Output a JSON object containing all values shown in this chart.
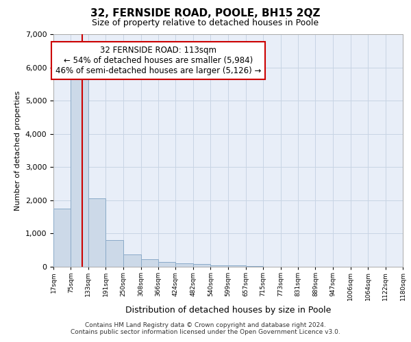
{
  "title_line1": "32, FERNSIDE ROAD, POOLE, BH15 2QZ",
  "title_line2": "Size of property relative to detached houses in Poole",
  "xlabel": "Distribution of detached houses by size in Poole",
  "ylabel": "Number of detached properties",
  "footnote1": "Contains HM Land Registry data © Crown copyright and database right 2024.",
  "footnote2": "Contains public sector information licensed under the Open Government Licence v3.0.",
  "annotation_line1": "32 FERNSIDE ROAD: 113sqm",
  "annotation_line2": "← 54% of detached houses are smaller (5,984)",
  "annotation_line3": "46% of semi-detached houses are larger (5,126) →",
  "property_size": 113,
  "bar_color": "#ccd9e8",
  "bar_edge_color": "#8aaac8",
  "marker_color": "#cc0000",
  "grid_color": "#c8d4e4",
  "background_color": "#e8eef8",
  "bins": [
    17,
    75,
    133,
    191,
    250,
    308,
    366,
    424,
    482,
    540,
    599,
    657,
    715,
    773,
    831,
    889,
    947,
    1006,
    1064,
    1122,
    1180
  ],
  "values": [
    1750,
    5750,
    2050,
    800,
    375,
    225,
    150,
    100,
    75,
    50,
    50,
    20,
    10,
    5,
    3,
    2,
    1,
    1,
    0,
    0
  ],
  "ylim": [
    0,
    7000
  ],
  "yticks": [
    0,
    1000,
    2000,
    3000,
    4000,
    5000,
    6000,
    7000
  ],
  "annotation_box_color": "#ffffff",
  "annotation_box_edge": "#cc0000",
  "fig_bg": "#ffffff"
}
